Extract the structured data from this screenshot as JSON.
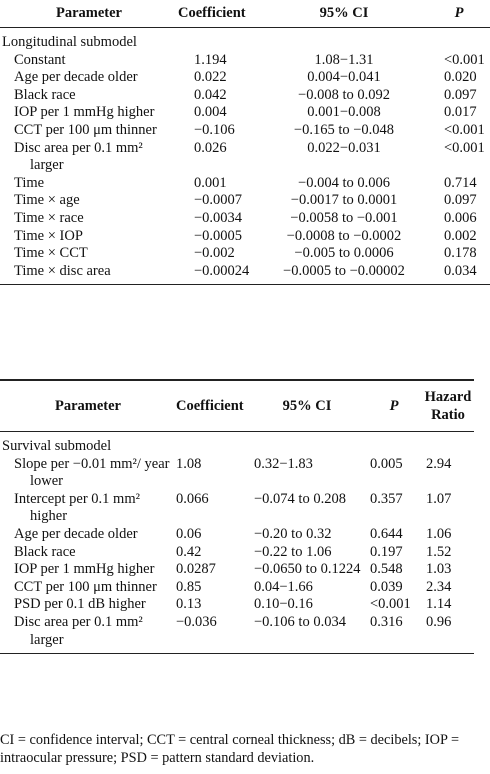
{
  "table1": {
    "header": [
      "Parameter",
      "Coefficient",
      "95% CI",
      "P"
    ],
    "section": "Longitudinal submodel",
    "rows": [
      [
        "Constant",
        "1.194",
        "1.08−1.31",
        "<0.001"
      ],
      [
        "Age per decade older",
        "0.022",
        "0.004−0.041",
        "0.020"
      ],
      [
        "Black race",
        "0.042",
        "−0.008 to 0.092",
        "0.097"
      ],
      [
        "IOP per 1 mmHg higher",
        "0.004",
        "0.001−0.008",
        "0.017"
      ],
      [
        "CCT per 100 μm thinner",
        "−0.106",
        "−0.165 to −0.048",
        "<0.001"
      ],
      [
        "Disc area per 0.1 mm² larger",
        "0.026",
        "0.022−0.031",
        "<0.001"
      ],
      [
        "Time",
        "0.001",
        "−0.004 to 0.006",
        "0.714"
      ],
      [
        "Time × age",
        "−0.0007",
        "−0.0017 to 0.0001",
        "0.097"
      ],
      [
        "Time × race",
        "−0.0034",
        "−0.0058 to −0.001",
        "0.006"
      ],
      [
        "Time × IOP",
        "−0.0005",
        "−0.0008 to −0.0002",
        "0.002"
      ],
      [
        "Time × CCT",
        "−0.002",
        "−0.005 to 0.0006",
        "0.178"
      ],
      [
        "Time × disc area",
        "−0.00024",
        "−0.0005 to −0.00002",
        "0.034"
      ]
    ]
  },
  "table2": {
    "header": [
      "Parameter",
      "Coefficient",
      "95% CI",
      "P",
      "Hazard Ratio"
    ],
    "section": "Survival submodel",
    "rows": [
      [
        "Slope per −0.01 mm²/ year lower",
        "1.08",
        "0.32−1.83",
        "0.005",
        "2.94"
      ],
      [
        "Intercept per 0.1 mm² higher",
        "0.066",
        "−0.074 to 0.208",
        "0.357",
        "1.07"
      ],
      [
        "Age per decade older",
        "0.06",
        "−0.20 to 0.32",
        "0.644",
        "1.06"
      ],
      [
        "Black race",
        "0.42",
        "−0.22 to 1.06",
        "0.197",
        "1.52"
      ],
      [
        "IOP per 1 mmHg higher",
        "0.0287",
        "−0.0650 to 0.1224",
        "0.548",
        "1.03"
      ],
      [
        "CCT per 100 μm thinner",
        "0.85",
        "0.04−1.66",
        "0.039",
        "2.34"
      ],
      [
        "PSD per 0.1 dB higher",
        "0.13",
        "0.10−0.16",
        "<0.001",
        "1.14"
      ],
      [
        "Disc area per 0.1 mm² larger",
        "−0.036",
        "−0.106 to 0.034",
        "0.316",
        "0.96"
      ]
    ]
  },
  "footnote": "CI = confidence interval; CCT = central corneal thickness; dB = decibels; IOP = intraocular pressure; PSD = pattern standard deviation."
}
